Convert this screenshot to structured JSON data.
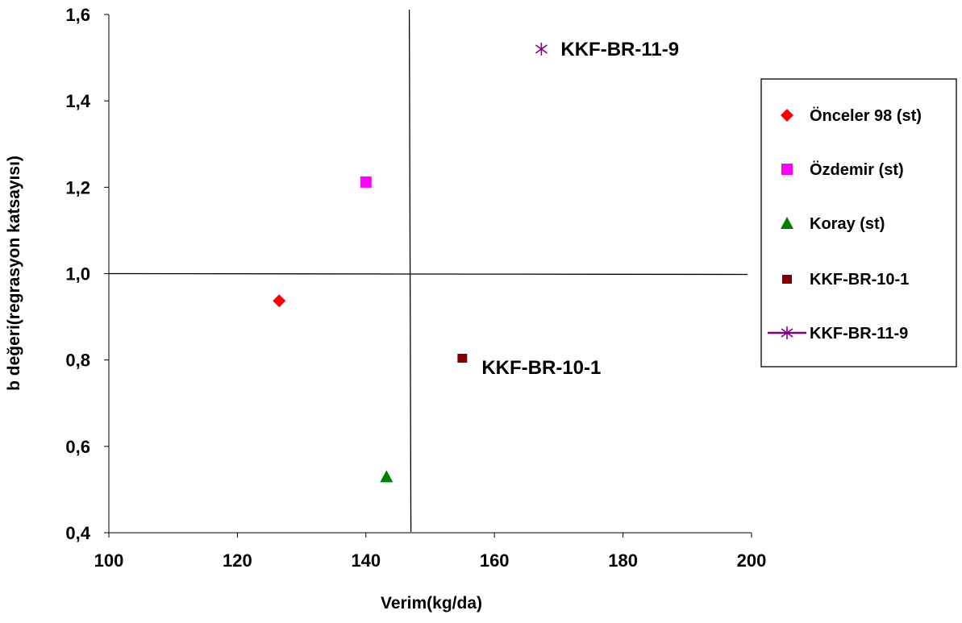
{
  "chart_data": {
    "type": "scatter",
    "title": "",
    "xlabel": "Verim(kg/da)",
    "ylabel": "b değeri(regrasyon katsayısı)",
    "xlim": [
      100,
      200
    ],
    "ylim": [
      0.4,
      1.6
    ],
    "x_ticks": [
      "100",
      "120",
      "140",
      "160",
      "180",
      "200"
    ],
    "y_ticks": [
      "0,4",
      "0,6",
      "0,8",
      "1,0",
      "1,2",
      "1,4",
      "1,6"
    ],
    "reference_lines": {
      "x": 147,
      "y": 1.0
    },
    "grid": false,
    "legend_position": "right",
    "series": [
      {
        "name": "Önceler 98 (st)",
        "x": 126.5,
        "y": 0.937,
        "color": "#ff0000",
        "marker": "diamond"
      },
      {
        "name": "Özdemir (st)",
        "x": 140.0,
        "y": 1.212,
        "color": "#ff00ff",
        "marker": "square"
      },
      {
        "name": "Koray (st)",
        "x": 143.2,
        "y": 0.53,
        "color": "#008000",
        "marker": "triangle"
      },
      {
        "name": "KKF-BR-10-1",
        "x": 155.0,
        "y": 0.805,
        "color": "#800000",
        "marker": "small-square"
      },
      {
        "name": "KKF-BR-11-9",
        "x": 167.3,
        "y": 1.52,
        "color": "#800080",
        "marker": "star"
      }
    ],
    "annotations": [
      {
        "text": "KKF-BR-11-9",
        "x": 167.3,
        "y": 1.52
      },
      {
        "text": "KKF-BR-10-1",
        "x": 155.0,
        "y": 0.805
      }
    ]
  }
}
